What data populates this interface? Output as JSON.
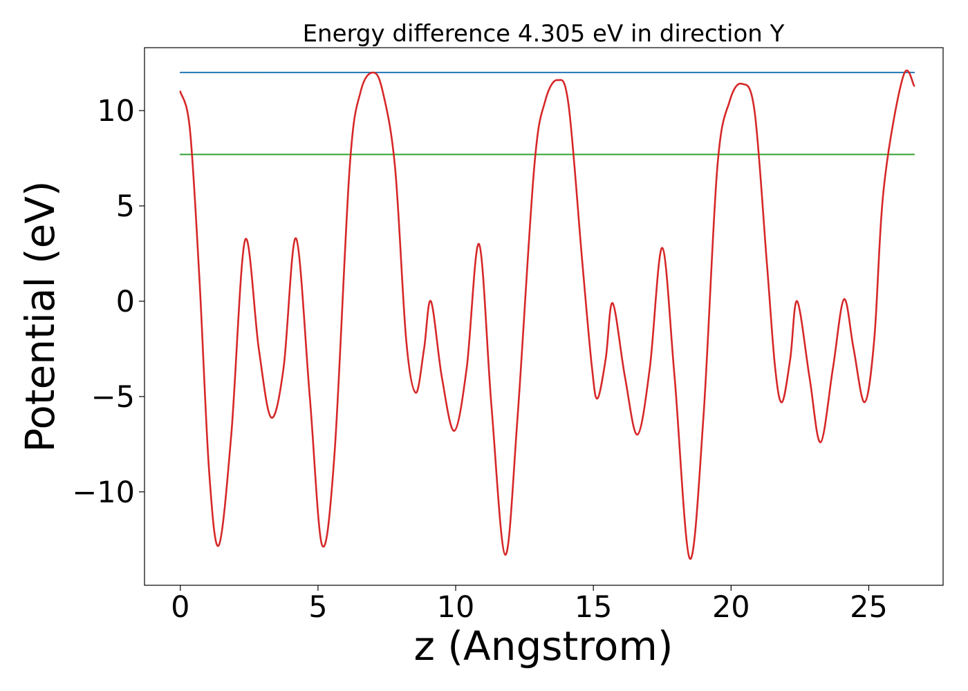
{
  "chart_data": {
    "type": "line",
    "title": "Energy difference 4.305 eV in direction Y",
    "xlabel": "z (Angstrom)",
    "ylabel": "Potential (eV)",
    "xlim": [
      -1.3,
      27.7
    ],
    "ylim": [
      -14.9,
      13.3
    ],
    "xticks": [
      0,
      5,
      10,
      15,
      20,
      25
    ],
    "xtick_labels": [
      "0",
      "5",
      "10",
      "15",
      "20",
      "25"
    ],
    "yticks": [
      -10,
      -5,
      0,
      5,
      10
    ],
    "ytick_labels": [
      "−10",
      "−5",
      "0",
      "5",
      "10"
    ],
    "grid": false,
    "legend": "none",
    "series": [
      {
        "color": "#d62728",
        "style": "curve",
        "x": [
          0,
          0.35,
          0.7,
          1.05,
          1.4,
          1.85,
          2.35,
          2.85,
          3.3,
          3.75,
          4.2,
          4.7,
          5.15,
          5.6,
          6.15,
          6.55,
          7.0,
          7.35,
          7.8,
          8.2,
          8.55,
          8.85,
          9.1,
          9.5,
          9.95,
          10.4,
          10.85,
          11.3,
          11.8,
          12.25,
          12.85,
          13.25,
          13.7,
          14.1,
          14.6,
          14.95,
          15.15,
          15.45,
          15.7,
          16.15,
          16.6,
          17.05,
          17.5,
          17.95,
          18.5,
          19.0,
          19.5,
          19.95,
          20.4,
          20.85,
          21.3,
          21.6,
          21.85,
          22.15,
          22.4,
          22.85,
          23.25,
          23.7,
          24.1,
          24.45,
          24.85,
          25.2,
          25.55,
          26.25,
          26.65
        ],
        "y": [
          11.0,
          9.0,
          1.0,
          -9.0,
          -12.8,
          -7.0,
          3.2,
          -2.5,
          -6.1,
          -3.5,
          3.3,
          -5.0,
          -12.8,
          -8.0,
          7.0,
          11.0,
          12.0,
          11.0,
          7.0,
          -2.0,
          -4.8,
          -2.5,
          0.0,
          -4.0,
          -6.8,
          -3.5,
          3.0,
          -5.5,
          -13.3,
          -6.0,
          7.0,
          10.5,
          11.6,
          10.3,
          2.0,
          -3.5,
          -5.1,
          -3.0,
          -0.1,
          -4.0,
          -7.0,
          -3.5,
          2.8,
          -4.0,
          -13.5,
          -6.0,
          7.0,
          10.5,
          11.4,
          10.0,
          2.0,
          -3.5,
          -5.3,
          -3.0,
          0.0,
          -4.0,
          -7.4,
          -3.5,
          0.1,
          -2.5,
          -5.3,
          -2.0,
          6.0,
          11.8,
          11.3
        ]
      },
      {
        "color": "#1f77b4",
        "style": "line",
        "x": [
          0,
          26.65
        ],
        "y": [
          12.0,
          12.0
        ]
      },
      {
        "color": "#2ca02c",
        "style": "line",
        "x": [
          0,
          26.65
        ],
        "y": [
          7.7,
          7.7
        ]
      }
    ]
  }
}
